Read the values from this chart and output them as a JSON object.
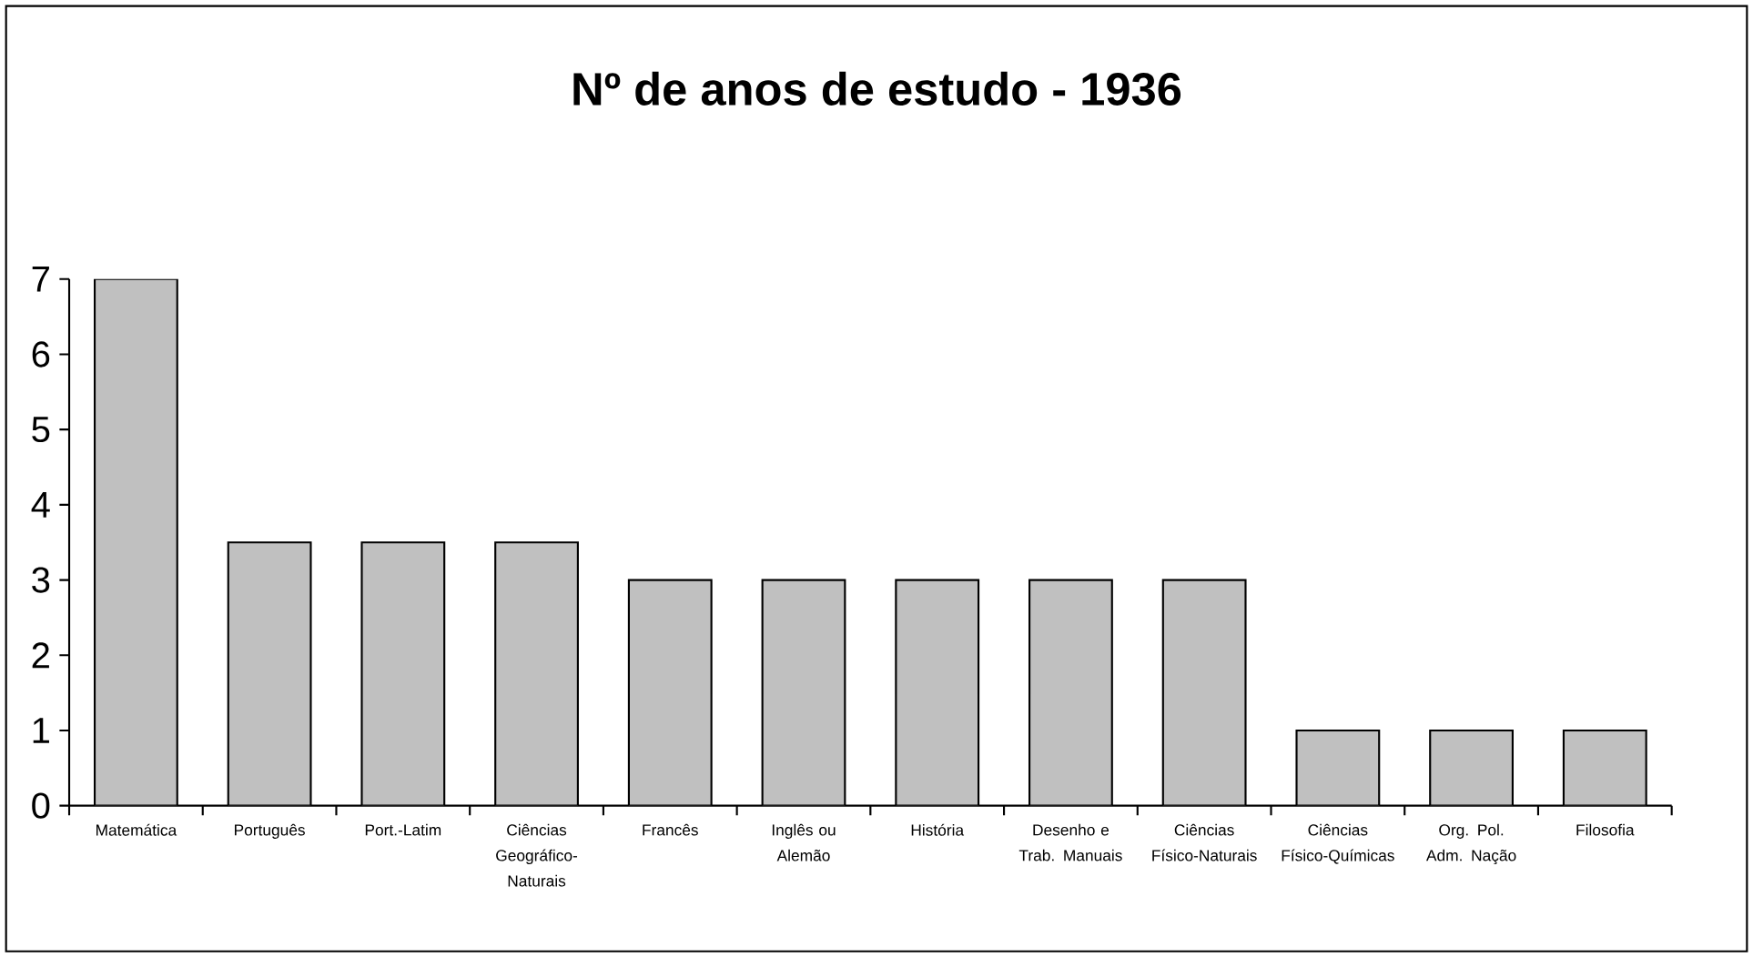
{
  "chart_data": {
    "type": "bar",
    "title": "Nº de anos de estudo - 1936",
    "categories": [
      "Matemática",
      "Português",
      "Port.-Latim",
      "Ciências Geográfico-Naturais",
      "Francês",
      "Inglês ou Alemão",
      "História",
      "Desenho e Trab. Manuais",
      "Ciências Físico-Naturais",
      "Ciências Físico-Químicas",
      "Org. Pol. Adm. Nação",
      "Filosofia"
    ],
    "values": [
      7,
      3.5,
      3.5,
      3.5,
      3,
      3,
      3,
      3,
      3,
      1,
      1,
      1
    ],
    "color": "#c0c0c0",
    "ylim": [
      0,
      7
    ],
    "yticks": [
      0,
      1,
      2,
      3,
      4,
      5,
      6,
      7
    ]
  }
}
